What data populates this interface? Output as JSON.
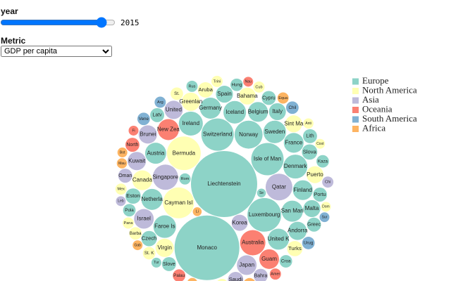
{
  "controls": {
    "year_label": "year",
    "year": 2015,
    "year_range": [
      1960,
      2020
    ],
    "metric_label": "Metric",
    "metric": "GDP per capita"
  },
  "chart_data": {
    "type": "bubble",
    "series": [
      {
        "name": "Europe",
        "color": "#8dd3c7",
        "labels": [
          "Liechtenstein",
          "Monaco",
          "Luxembourg",
          "Isle of Man",
          "Switzerland",
          "Norway",
          "Ireland",
          "Denmark",
          "Sweden",
          "Iceland",
          "Faroe Is",
          "San Mari",
          "Netherla",
          "Austria",
          "Germany",
          "United K",
          "Finland",
          "Belgium",
          "France",
          "Andorra",
          "Italy",
          "Spain",
          "Malta",
          "Slova",
          "Eston",
          "Czech",
          "Latv",
          "Portu",
          "Cypru",
          "Slove",
          "Lith",
          "Greec",
          "Pola",
          "Croa",
          "Hung",
          "Kaza",
          "Rom",
          "Rus",
          "Tur",
          "Se"
        ],
        "values": [
          167000,
          160000,
          43500,
          40000,
          40000,
          30000,
          22000,
          22000,
          19500,
          19500,
          19500,
          17000,
          17000,
          17000,
          17000,
          17000,
          15000,
          15000,
          15000,
          12800,
          11000,
          11000,
          11000,
          9000,
          9000,
          9000,
          7500,
          7500,
          7500,
          7500,
          7500,
          7500,
          6000,
          6000,
          6000,
          6000,
          4800,
          4800,
          3700,
          3000
        ]
      },
      {
        "name": "North America",
        "color": "#ffffb3",
        "labels": [
          "Bermuda",
          "Cayman Isl",
          "Canada",
          "Virgin",
          "Greenlan",
          "Bahama",
          "Puerto",
          "Sint Ma",
          "Turks",
          "Aruba",
          "Curac",
          "Barba",
          "St. K",
          "St.",
          "Trini",
          "Mex",
          "Cub",
          "Pana",
          "Anti",
          "Cost",
          "Dom"
        ],
        "values": [
          43500,
          36600,
          15000,
          12800,
          12800,
          11000,
          11000,
          11000,
          9000,
          9000,
          6000,
          6000,
          6000,
          6000,
          4800,
          4800,
          4800,
          4800,
          4000,
          3700,
          3700
        ]
      },
      {
        "name": "Asia",
        "color": "#bebada",
        "labels": [
          "Qatar",
          "Singapore",
          "Japan",
          "Israel",
          "United",
          "Kuwait",
          "Brunei",
          "Korea",
          "Saudi",
          "Bahra",
          "Oman",
          "Chi",
          "Leb"
        ],
        "values": [
          27300,
          24500,
          14800,
          14800,
          12800,
          12800,
          12800,
          10000,
          9000,
          7500,
          7500,
          4800,
          3700
        ]
      },
      {
        "name": "Oceania",
        "color": "#fb8072",
        "labels": [
          "Australia",
          "New Zea",
          "Guam",
          "North",
          "Palau",
          "Amer",
          "Fi",
          "Nau"
        ],
        "values": [
          24500,
          17000,
          14800,
          7500,
          6000,
          4800,
          3700,
          3700
        ]
      },
      {
        "name": "South America",
        "color": "#80b1d3",
        "labels": [
          "Chil",
          "Urug",
          "Vene",
          "Arg",
          "Bra",
          "Sur"
        ],
        "values": [
          6000,
          6000,
          6000,
          4800,
          4800,
          3700
        ]
      },
      {
        "name": "Africa",
        "color": "#fdb462",
        "labels": [
          "Seyc",
          "Equa",
          "Mau",
          "So",
          "Gab",
          "Bot",
          "Li"
        ],
        "values": [
          6000,
          4800,
          4000,
          4000,
          3700,
          3700,
          3000
        ]
      }
    ]
  }
}
